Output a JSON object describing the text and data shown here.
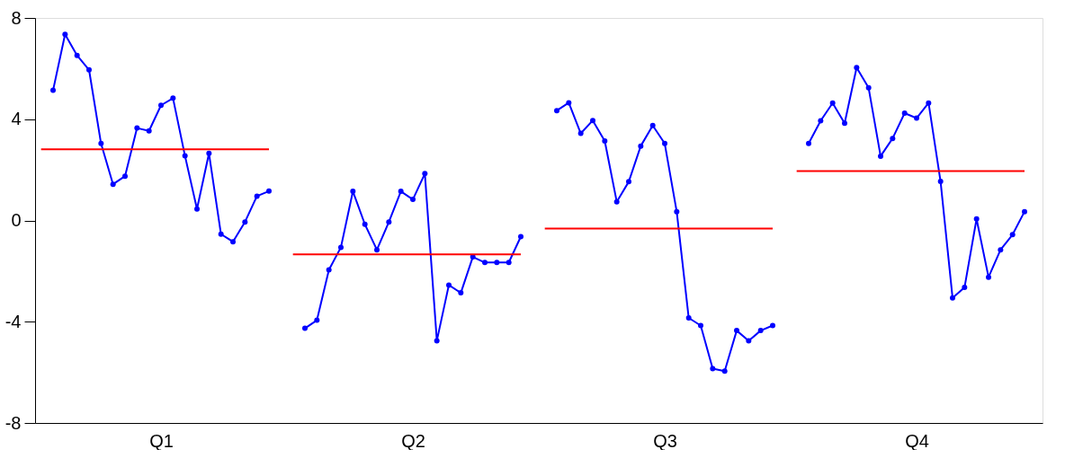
{
  "chart_data": {
    "type": "line",
    "ylim": [
      -8,
      8
    ],
    "yticks": [
      -8,
      -4,
      0,
      4,
      8
    ],
    "line_style": "solid",
    "categories": [
      null,
      null,
      null,
      null,
      null,
      null,
      null,
      null,
      null,
      null,
      "Q1",
      null,
      null,
      null,
      null,
      null,
      null,
      null,
      null,
      null,
      null,
      null,
      null,
      null,
      null,
      null,
      null,
      null,
      null,
      null,
      null,
      "Q2",
      null,
      null,
      null,
      null,
      null,
      null,
      null,
      null,
      null,
      null,
      null,
      null,
      null,
      null,
      null,
      null,
      null,
      null,
      null,
      null,
      "Q3",
      null,
      null,
      null,
      null,
      null,
      null,
      null,
      null,
      null,
      null,
      null,
      null,
      null,
      null,
      null,
      null,
      null,
      null,
      null,
      null,
      "Q4",
      null,
      null,
      null,
      null,
      null,
      null,
      null,
      null,
      null,
      null
    ],
    "series": [
      {
        "color": "#0000ff",
        "marker": "circle",
        "values": [
          null,
          5.14,
          7.35,
          6.52,
          5.95,
          3.04,
          1.43,
          1.75,
          3.65,
          3.54,
          4.55,
          4.83,
          2.55,
          0.45,
          2.65,
          -0.54,
          -0.84,
          -0.06,
          0.96,
          1.16,
          null,
          null,
          null,
          null,
          null,
          null,
          null,
          null,
          null,
          null,
          null,
          null,
          null,
          null,
          null,
          null,
          null,
          null,
          null,
          null,
          null,
          null,
          null,
          null,
          null,
          null,
          null,
          null,
          null,
          null,
          null,
          null,
          null,
          null,
          null,
          null,
          null,
          null,
          null,
          null,
          null,
          null,
          null,
          null,
          null,
          null,
          null,
          null,
          null,
          null,
          null,
          null,
          null,
          null,
          null,
          null,
          null,
          null,
          null,
          null,
          null,
          null,
          null,
          null
        ]
      },
      {
        "color": "#0000ff",
        "marker": "circle",
        "values": [
          null,
          null,
          null,
          null,
          null,
          null,
          null,
          null,
          null,
          null,
          null,
          null,
          null,
          null,
          null,
          null,
          null,
          null,
          null,
          null,
          null,
          null,
          -4.26,
          -3.94,
          -1.95,
          -1.06,
          1.15,
          -0.15,
          -1.16,
          -0.06,
          1.15,
          0.83,
          1.85,
          -4.75,
          -2.55,
          -2.86,
          -1.44,
          -1.66,
          -1.66,
          -1.66,
          -0.64,
          null,
          null,
          null,
          null,
          null,
          null,
          null,
          null,
          null,
          null,
          null,
          null,
          null,
          null,
          null,
          null,
          null,
          null,
          null,
          null,
          null,
          null,
          null,
          null,
          null,
          null,
          null,
          null,
          null,
          null,
          null,
          null,
          null,
          null,
          null,
          null,
          null,
          null,
          null,
          null,
          null,
          null,
          null
        ]
      },
      {
        "color": "#0000ff",
        "marker": "circle",
        "values": [
          null,
          null,
          null,
          null,
          null,
          null,
          null,
          null,
          null,
          null,
          null,
          null,
          null,
          null,
          null,
          null,
          null,
          null,
          null,
          null,
          null,
          null,
          null,
          null,
          null,
          null,
          null,
          null,
          null,
          null,
          null,
          null,
          null,
          null,
          null,
          null,
          null,
          null,
          null,
          null,
          null,
          null,
          null,
          4.34,
          4.65,
          3.44,
          3.95,
          3.14,
          0.74,
          1.53,
          2.94,
          3.75,
          3.04,
          0.35,
          -3.85,
          -4.15,
          -5.85,
          -5.95,
          -4.35,
          -4.75,
          -4.35,
          -4.15,
          null,
          null,
          null,
          null,
          null,
          null,
          null,
          null,
          null,
          null,
          null,
          null,
          null,
          null,
          null,
          null,
          null,
          null,
          null,
          null,
          null,
          null
        ]
      },
      {
        "color": "#0000ff",
        "marker": "circle",
        "values": [
          null,
          null,
          null,
          null,
          null,
          null,
          null,
          null,
          null,
          null,
          null,
          null,
          null,
          null,
          null,
          null,
          null,
          null,
          null,
          null,
          null,
          null,
          null,
          null,
          null,
          null,
          null,
          null,
          null,
          null,
          null,
          null,
          null,
          null,
          null,
          null,
          null,
          null,
          null,
          null,
          null,
          null,
          null,
          null,
          null,
          null,
          null,
          null,
          null,
          null,
          null,
          null,
          null,
          null,
          null,
          null,
          null,
          null,
          null,
          null,
          null,
          null,
          null,
          null,
          3.04,
          3.94,
          4.64,
          3.84,
          6.04,
          5.24,
          2.54,
          3.24,
          4.24,
          4.04,
          4.64,
          1.54,
          -3.06,
          -2.64,
          0.06,
          -2.24,
          -1.16,
          -0.56,
          0.35,
          null
        ]
      },
      {
        "color": "#ff0000",
        "marker": "none",
        "values": [
          2.81,
          2.81,
          2.81,
          2.81,
          2.81,
          2.81,
          2.81,
          2.81,
          2.81,
          2.81,
          2.81,
          2.81,
          2.81,
          2.81,
          2.81,
          2.81,
          2.81,
          2.81,
          2.81,
          2.81,
          null,
          null,
          null,
          null,
          null,
          null,
          null,
          null,
          null,
          null,
          null,
          null,
          null,
          null,
          null,
          null,
          null,
          null,
          null,
          null,
          null,
          null,
          null,
          null,
          null,
          null,
          null,
          null,
          null,
          null,
          null,
          null,
          null,
          null,
          null,
          null,
          null,
          null,
          null,
          null,
          null,
          null,
          null,
          null,
          null,
          null,
          null,
          null,
          null,
          null,
          null,
          null,
          null,
          null,
          null,
          null,
          null,
          null,
          null,
          null,
          null,
          null,
          null,
          null
        ]
      },
      {
        "color": "#ff0000",
        "marker": "none",
        "values": [
          null,
          null,
          null,
          null,
          null,
          null,
          null,
          null,
          null,
          null,
          null,
          null,
          null,
          null,
          null,
          null,
          null,
          null,
          null,
          null,
          null,
          -1.34,
          -1.34,
          -1.34,
          -1.34,
          -1.34,
          -1.34,
          -1.34,
          -1.34,
          -1.34,
          -1.34,
          -1.34,
          -1.34,
          -1.34,
          -1.34,
          -1.34,
          -1.34,
          -1.34,
          -1.34,
          -1.34,
          -1.34,
          null,
          null,
          null,
          null,
          null,
          null,
          null,
          null,
          null,
          null,
          null,
          null,
          null,
          null,
          null,
          null,
          null,
          null,
          null,
          null,
          null,
          null,
          null,
          null,
          null,
          null,
          null,
          null,
          null,
          null,
          null,
          null,
          null,
          null,
          null,
          null,
          null,
          null,
          null,
          null,
          null,
          null,
          null
        ]
      },
      {
        "color": "#ff0000",
        "marker": "none",
        "values": [
          null,
          null,
          null,
          null,
          null,
          null,
          null,
          null,
          null,
          null,
          null,
          null,
          null,
          null,
          null,
          null,
          null,
          null,
          null,
          null,
          null,
          null,
          null,
          null,
          null,
          null,
          null,
          null,
          null,
          null,
          null,
          null,
          null,
          null,
          null,
          null,
          null,
          null,
          null,
          null,
          null,
          null,
          -0.32,
          -0.32,
          -0.32,
          -0.32,
          -0.32,
          -0.32,
          -0.32,
          -0.32,
          -0.32,
          -0.32,
          -0.32,
          -0.32,
          -0.32,
          -0.32,
          -0.32,
          -0.32,
          -0.32,
          -0.32,
          -0.32,
          -0.32,
          null,
          null,
          null,
          null,
          null,
          null,
          null,
          null,
          null,
          null,
          null,
          null,
          null,
          null,
          null,
          null,
          null,
          null,
          null,
          null,
          null,
          null
        ]
      },
      {
        "color": "#ff0000",
        "marker": "none",
        "values": [
          null,
          null,
          null,
          null,
          null,
          null,
          null,
          null,
          null,
          null,
          null,
          null,
          null,
          null,
          null,
          null,
          null,
          null,
          null,
          null,
          null,
          null,
          null,
          null,
          null,
          null,
          null,
          null,
          null,
          null,
          null,
          null,
          null,
          null,
          null,
          null,
          null,
          null,
          null,
          null,
          null,
          null,
          null,
          null,
          null,
          null,
          null,
          null,
          null,
          null,
          null,
          null,
          null,
          null,
          null,
          null,
          null,
          null,
          null,
          null,
          null,
          null,
          null,
          1.95,
          1.95,
          1.95,
          1.95,
          1.95,
          1.95,
          1.95,
          1.95,
          1.95,
          1.95,
          1.95,
          1.95,
          1.95,
          1.95,
          1.95,
          1.95,
          1.95,
          1.95,
          1.95,
          1.95,
          null
        ]
      }
    ]
  }
}
